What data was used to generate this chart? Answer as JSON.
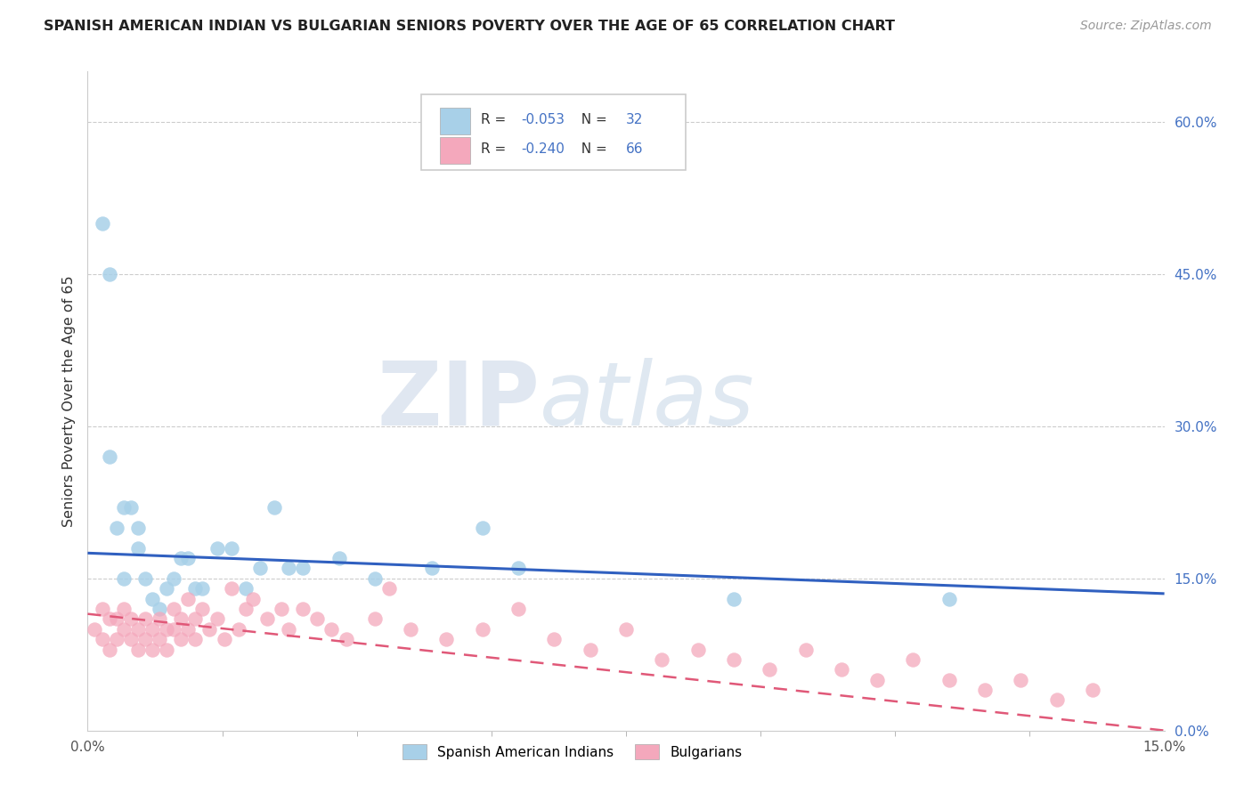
{
  "title": "SPANISH AMERICAN INDIAN VS BULGARIAN SENIORS POVERTY OVER THE AGE OF 65 CORRELATION CHART",
  "source": "Source: ZipAtlas.com",
  "ylabel": "Seniors Poverty Over the Age of 65",
  "legend1_label": "Spanish American Indians",
  "legend2_label": "Bulgarians",
  "r1": "-0.053",
  "n1": "32",
  "r2": "-0.240",
  "n2": "66",
  "xlim": [
    0.0,
    0.15
  ],
  "ylim": [
    0.0,
    0.65
  ],
  "yticks": [
    0.0,
    0.15,
    0.3,
    0.45,
    0.6
  ],
  "ytick_labels": [
    "0.0%",
    "15.0%",
    "30.0%",
    "45.0%",
    "60.0%"
  ],
  "color_blue": "#a8d0e8",
  "color_pink": "#f4a8bc",
  "color_blue_line": "#3060c0",
  "color_pink_line": "#e05878",
  "blue_x": [
    0.002,
    0.003,
    0.004,
    0.005,
    0.006,
    0.007,
    0.008,
    0.009,
    0.01,
    0.011,
    0.012,
    0.013,
    0.014,
    0.015,
    0.016,
    0.018,
    0.02,
    0.022,
    0.024,
    0.026,
    0.028,
    0.03,
    0.035,
    0.04,
    0.048,
    0.055,
    0.06,
    0.003,
    0.005,
    0.007,
    0.09,
    0.12
  ],
  "blue_y": [
    0.5,
    0.27,
    0.2,
    0.22,
    0.22,
    0.18,
    0.15,
    0.13,
    0.12,
    0.14,
    0.15,
    0.17,
    0.17,
    0.14,
    0.14,
    0.18,
    0.18,
    0.14,
    0.16,
    0.22,
    0.16,
    0.16,
    0.17,
    0.15,
    0.16,
    0.2,
    0.16,
    0.45,
    0.15,
    0.2,
    0.13,
    0.13
  ],
  "pink_x": [
    0.001,
    0.002,
    0.002,
    0.003,
    0.003,
    0.004,
    0.004,
    0.005,
    0.005,
    0.006,
    0.006,
    0.007,
    0.007,
    0.008,
    0.008,
    0.009,
    0.009,
    0.01,
    0.01,
    0.011,
    0.011,
    0.012,
    0.012,
    0.013,
    0.013,
    0.014,
    0.014,
    0.015,
    0.015,
    0.016,
    0.017,
    0.018,
    0.019,
    0.02,
    0.021,
    0.022,
    0.023,
    0.025,
    0.027,
    0.028,
    0.03,
    0.032,
    0.034,
    0.036,
    0.04,
    0.042,
    0.045,
    0.05,
    0.055,
    0.06,
    0.065,
    0.07,
    0.075,
    0.08,
    0.085,
    0.09,
    0.095,
    0.1,
    0.105,
    0.11,
    0.115,
    0.12,
    0.125,
    0.13,
    0.135,
    0.14
  ],
  "pink_y": [
    0.1,
    0.09,
    0.12,
    0.08,
    0.11,
    0.09,
    0.11,
    0.1,
    0.12,
    0.09,
    0.11,
    0.1,
    0.08,
    0.09,
    0.11,
    0.08,
    0.1,
    0.09,
    0.11,
    0.1,
    0.08,
    0.1,
    0.12,
    0.09,
    0.11,
    0.1,
    0.13,
    0.11,
    0.09,
    0.12,
    0.1,
    0.11,
    0.09,
    0.14,
    0.1,
    0.12,
    0.13,
    0.11,
    0.12,
    0.1,
    0.12,
    0.11,
    0.1,
    0.09,
    0.11,
    0.14,
    0.1,
    0.09,
    0.1,
    0.12,
    0.09,
    0.08,
    0.1,
    0.07,
    0.08,
    0.07,
    0.06,
    0.08,
    0.06,
    0.05,
    0.07,
    0.05,
    0.04,
    0.05,
    0.03,
    0.04
  ],
  "blue_line_x": [
    0.0,
    0.15
  ],
  "blue_line_y": [
    0.175,
    0.135
  ],
  "pink_line_x": [
    0.0,
    0.15
  ],
  "pink_line_y": [
    0.115,
    0.0
  ],
  "watermark_zip": "ZIP",
  "watermark_atlas": "atlas"
}
